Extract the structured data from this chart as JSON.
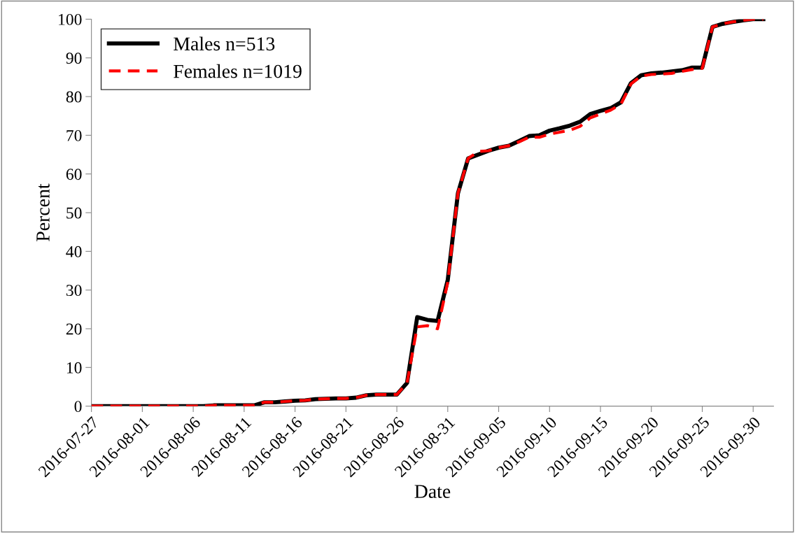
{
  "chart_data": {
    "type": "line",
    "xlabel": "Date",
    "ylabel": "Percent",
    "x": [
      "2016-07-27",
      "2016-07-28",
      "2016-07-29",
      "2016-07-30",
      "2016-07-31",
      "2016-08-01",
      "2016-08-02",
      "2016-08-03",
      "2016-08-04",
      "2016-08-05",
      "2016-08-06",
      "2016-08-07",
      "2016-08-08",
      "2016-08-09",
      "2016-08-10",
      "2016-08-11",
      "2016-08-12",
      "2016-08-13",
      "2016-08-14",
      "2016-08-15",
      "2016-08-16",
      "2016-08-17",
      "2016-08-18",
      "2016-08-19",
      "2016-08-20",
      "2016-08-21",
      "2016-08-22",
      "2016-08-23",
      "2016-08-24",
      "2016-08-25",
      "2016-08-26",
      "2016-08-27",
      "2016-08-28",
      "2016-08-29",
      "2016-08-30",
      "2016-08-31",
      "2016-09-01",
      "2016-09-02",
      "2016-09-03",
      "2016-09-04",
      "2016-09-05",
      "2016-09-06",
      "2016-09-07",
      "2016-09-08",
      "2016-09-09",
      "2016-09-10",
      "2016-09-11",
      "2016-09-12",
      "2016-09-13",
      "2016-09-14",
      "2016-09-15",
      "2016-09-16",
      "2016-09-17",
      "2016-09-18",
      "2016-09-19",
      "2016-09-20",
      "2016-09-21",
      "2016-09-22",
      "2016-09-23",
      "2016-09-24",
      "2016-09-25",
      "2016-09-26",
      "2016-09-27",
      "2016-09-28",
      "2016-09-29",
      "2016-09-30",
      "2016-10-01"
    ],
    "series": [
      {
        "name": "Males n=513",
        "color": "#000000",
        "line_style": "solid",
        "values": [
          0,
          0,
          0,
          0,
          0,
          0,
          0,
          0,
          0,
          0,
          0,
          0,
          0.2,
          0.2,
          0.2,
          0.2,
          0.2,
          1,
          1,
          1.2,
          1.4,
          1.5,
          1.8,
          1.9,
          2,
          2,
          2.2,
          2.8,
          3,
          3,
          3,
          6,
          23,
          22.3,
          22,
          32.6,
          55,
          64,
          65,
          66,
          66.8,
          67.3,
          68.5,
          69.8,
          70,
          71.2,
          71.8,
          72.5,
          73.5,
          75.5,
          76.3,
          77,
          78.5,
          83.5,
          85.5,
          86,
          86.2,
          86.5,
          86.8,
          87.5,
          87.5,
          98,
          98.8,
          99.3,
          99.7,
          100,
          100
        ]
      },
      {
        "name": "Females n=1019",
        "color": "#ff0000",
        "line_style": "dashed",
        "values": [
          0,
          0,
          0,
          0,
          0,
          0,
          0,
          0,
          0,
          0,
          0,
          0,
          0.2,
          0.2,
          0.2,
          0.2,
          0.2,
          1,
          1,
          1.2,
          1.4,
          1.5,
          1.8,
          1.9,
          2,
          2,
          2.2,
          2.8,
          3,
          3,
          3,
          6,
          20.5,
          20.8,
          20,
          32,
          55,
          64,
          65.8,
          66,
          66.8,
          67.3,
          68.3,
          69.5,
          69.5,
          70.3,
          70.8,
          71.3,
          72.3,
          74.5,
          75.5,
          76.5,
          78,
          83.3,
          85.3,
          85.7,
          85.8,
          86,
          86.5,
          87,
          87.3,
          98,
          98.8,
          99.3,
          99.7,
          100,
          100
        ]
      }
    ],
    "xlim": [
      "2016-07-27",
      "2016-10-02"
    ],
    "xticks": [
      "2016-07-27",
      "2016-08-01",
      "2016-08-06",
      "2016-08-11",
      "2016-08-16",
      "2016-08-21",
      "2016-08-26",
      "2016-08-31",
      "2016-09-05",
      "2016-09-10",
      "2016-09-15",
      "2016-09-20",
      "2016-09-25",
      "2016-09-30"
    ],
    "ylim": [
      0,
      100
    ],
    "yticks": [
      0,
      10,
      20,
      30,
      40,
      50,
      60,
      70,
      80,
      90,
      100
    ],
    "grid": false,
    "legend": "top left",
    "marker": "none"
  }
}
